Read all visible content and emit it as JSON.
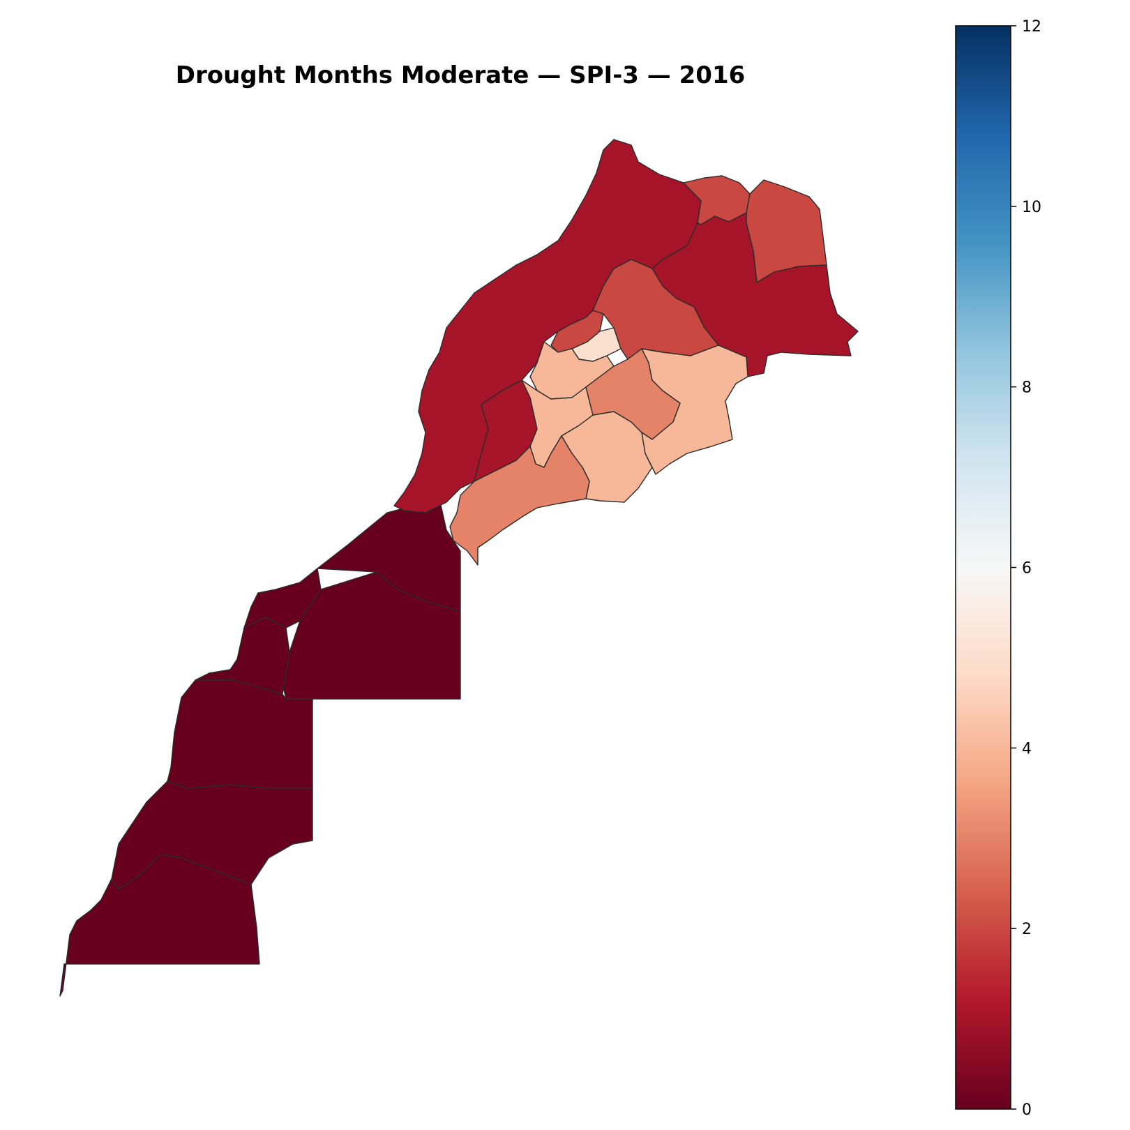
{
  "title": "Drought Months Moderate — SPI-3 — 2016",
  "colorbar": {
    "colormap": "RdBu",
    "min": 0,
    "max": 12,
    "ticks": [
      0,
      2,
      4,
      6,
      8,
      10,
      12
    ],
    "stops": [
      "#67001f",
      "#b2182b",
      "#d6604d",
      "#f4a582",
      "#fddbc7",
      "#f7f7f7",
      "#d1e5f0",
      "#92c5de",
      "#4393c3",
      "#2166ac",
      "#053061"
    ]
  },
  "map_data": {
    "regions": [
      {
        "id": "sahara-1",
        "value": 0
      },
      {
        "id": "sahara-2",
        "value": 0
      },
      {
        "id": "sahara-3",
        "value": 0
      },
      {
        "id": "sahara-4",
        "value": 0
      },
      {
        "id": "sahara-5",
        "value": 0
      },
      {
        "id": "sahara-6",
        "value": 0
      },
      {
        "id": "sahara-7",
        "value": 0
      },
      {
        "id": "north-west",
        "value": 1
      },
      {
        "id": "south-coast",
        "value": 1
      },
      {
        "id": "east-oriental",
        "value": 1
      },
      {
        "id": "north-east-mid",
        "value": 2
      },
      {
        "id": "oriental-north",
        "value": 2
      },
      {
        "id": "centre-north",
        "value": 2
      },
      {
        "id": "centre-east",
        "value": 2
      },
      {
        "id": "centre-south-strip",
        "value": 3
      },
      {
        "id": "south-east-strip",
        "value": 3
      },
      {
        "id": "centre-pale-1",
        "value": 4
      },
      {
        "id": "centre-pale-2",
        "value": 4
      },
      {
        "id": "centre-pale-3",
        "value": 4
      },
      {
        "id": "east-pale",
        "value": 4
      },
      {
        "id": "centre-pale-4",
        "value": 5
      }
    ]
  }
}
